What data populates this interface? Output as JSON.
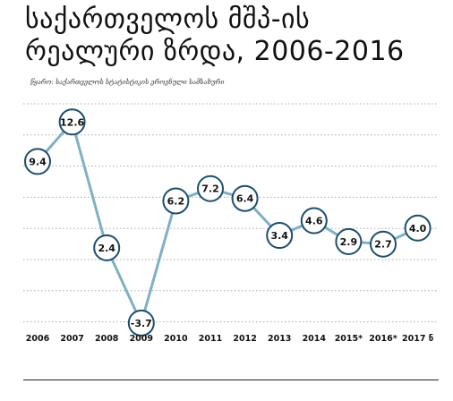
{
  "chart_data": {
    "type": "line",
    "title": "საქართველოს მშპ-ის რეალური ზრდა, 2006-2016",
    "title_lines": [
      "საქართველოს მშპ-ის",
      "რეალური ზრდა, 2006-2016"
    ],
    "source": "წყარო: საქართველოს სტატისტიკის ეროვნული სამსახური",
    "categories": [
      "2006",
      "2007",
      "2008",
      "2009",
      "2010",
      "2011",
      "2012",
      "2013",
      "2014",
      "2015*",
      "2016*",
      "2017 ნ"
    ],
    "series": [
      {
        "values": [
          9.4,
          12.6,
          2.4,
          -3.7,
          6.2,
          7.2,
          6.4,
          3.4,
          4.6,
          2.9,
          2.7,
          4.0
        ],
        "labels": [
          "9.4",
          "12.6",
          "2.4",
          "-3.7",
          "6.2",
          "7.2",
          "6.4",
          "3.4",
          "4.6",
          "2.9",
          "2.7",
          "4.0"
        ]
      }
    ],
    "ylim": [
      -4,
      14
    ],
    "grid": true,
    "xlabel": "",
    "ylabel": "",
    "colors": {
      "line": "#7fb0c3",
      "marker_border": "#1d4e6e",
      "grid": "#aaaaaa",
      "text": "#111111"
    }
  }
}
